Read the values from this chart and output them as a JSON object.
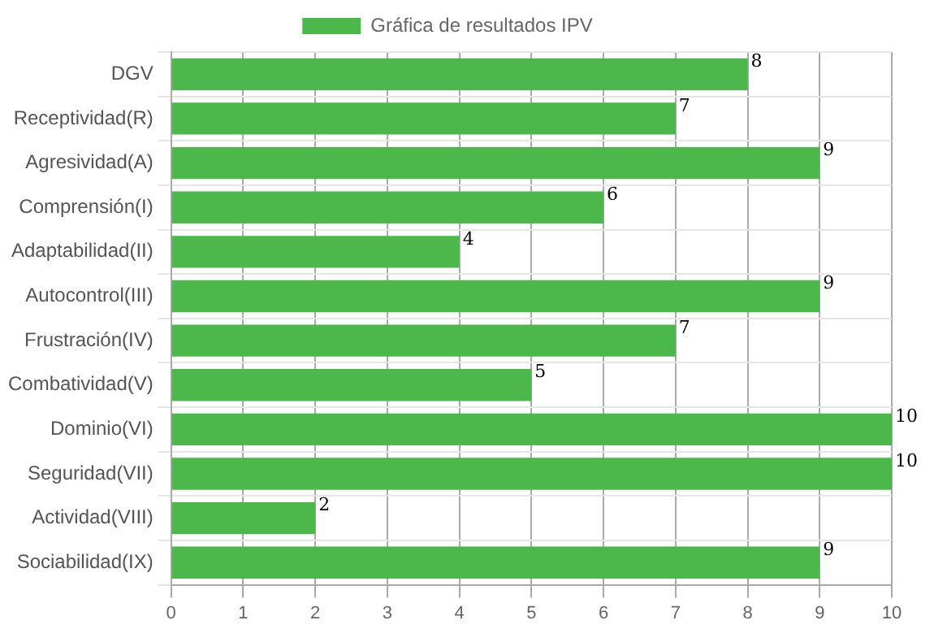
{
  "chart_data": {
    "type": "bar",
    "orientation": "horizontal",
    "categories": [
      "DGV",
      "Receptividad(R)",
      "Agresividad(A)",
      "Comprensión(I)",
      "Adaptabilidad(II)",
      "Autocontrol(III)",
      "Frustración(IV)",
      "Combatividad(V)",
      "Dominio(VI)",
      "Seguridad(VII)",
      "Actividad(VIII)",
      "Sociabilidad(IX)"
    ],
    "series": [
      {
        "name": "Gráfica de resultados IPV",
        "color": "#4cb84c",
        "values": [
          8,
          7,
          9,
          6,
          4,
          9,
          7,
          5,
          10,
          10,
          2,
          9
        ]
      }
    ],
    "xlim": [
      0,
      10
    ],
    "xticks": [
      0,
      1,
      2,
      3,
      4,
      5,
      6,
      7,
      8,
      9,
      10
    ],
    "grid": true,
    "legend": "top",
    "data_labels": true
  }
}
